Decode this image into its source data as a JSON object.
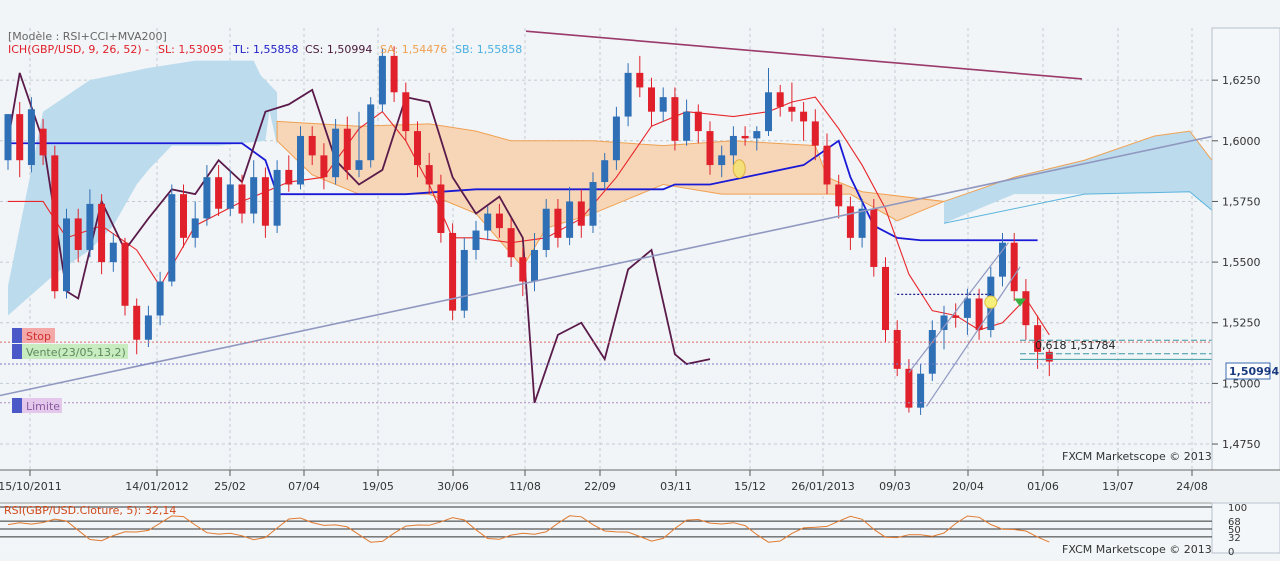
{
  "legend": {
    "model": "[Modèle : RSI+CCI+MVA200]",
    "ich_name": "ICH(GBP/USD, 9, 26, 52) -",
    "sl": "SL: 1,53095",
    "tl": "TL: 1,55858",
    "cs": "CS: 1,50994",
    "sa": "SA: 1,54476",
    "sb": "SB: 1,55858"
  },
  "colors": {
    "up": "#2f6fb5",
    "down": "#e0202a",
    "kijun": "#1a1ad6",
    "tenkan": "#e8262a",
    "chikou": "#5a1a4a",
    "kumo_bull": "#bcdcee",
    "kumo_bear": "#f7d6b8",
    "span_a": "#f0a050",
    "span_b": "#5ab4dc",
    "trend": "#9098c0",
    "top_trend": "#9a3a6a"
  },
  "orders": {
    "stop": "Stop",
    "sell": "Vente(23/05,13,2)",
    "limit": "Limite"
  },
  "fib_label": "0,618 1,51784",
  "price_badge": "1,50994",
  "watermark": "FXCM Marketscope © 2013",
  "watermark2": "FXCM Marketscope © 2013",
  "rsi_label": "RSI(GBP/USD.Cloture, 5): 32,14",
  "chart_data": {
    "type": "candlestick",
    "x_ticks": [
      "15/10/2011",
      "14/01/2012",
      "25/02",
      "07/04",
      "19/05",
      "30/06",
      "11/08",
      "22/09",
      "03/11",
      "15/12",
      "26/01/2013",
      "09/03",
      "20/04",
      "01/06",
      "13/07",
      "24/08"
    ],
    "y_ticks": [
      "1,4750",
      "1,5000",
      "1,5250",
      "1,5500",
      "1,5750",
      "1,6000",
      "1,6250"
    ],
    "y_range": [
      1.4643,
      1.6465
    ],
    "weeks_total": 90,
    "rsi_ticks": [
      "100",
      "68",
      "50",
      "32",
      "0"
    ],
    "candles": [
      [
        1.592,
        1.611,
        1.611,
        1.588
      ],
      [
        1.611,
        1.592,
        1.616,
        1.585
      ],
      [
        1.59,
        1.613,
        1.618,
        1.587
      ],
      [
        1.605,
        1.594,
        1.609,
        1.59
      ],
      [
        1.594,
        1.538,
        1.598,
        1.535
      ],
      [
        1.538,
        1.568,
        1.572,
        1.535
      ],
      [
        1.568,
        1.555,
        1.572,
        1.55
      ],
      [
        1.555,
        1.574,
        1.58,
        1.552
      ],
      [
        1.574,
        1.55,
        1.578,
        1.545
      ],
      [
        1.55,
        1.558,
        1.562,
        1.546
      ],
      [
        1.558,
        1.532,
        1.56,
        1.528
      ],
      [
        1.532,
        1.518,
        1.535,
        1.512
      ],
      [
        1.518,
        1.528,
        1.532,
        1.515
      ],
      [
        1.528,
        1.542,
        1.546,
        1.524
      ],
      [
        1.542,
        1.578,
        1.582,
        1.54
      ],
      [
        1.578,
        1.56,
        1.582,
        1.556
      ],
      [
        1.56,
        1.568,
        1.575,
        1.556
      ],
      [
        1.568,
        1.585,
        1.59,
        1.565
      ],
      [
        1.585,
        1.572,
        1.59,
        1.569
      ],
      [
        1.572,
        1.582,
        1.588,
        1.569
      ],
      [
        1.582,
        1.57,
        1.586,
        1.566
      ],
      [
        1.57,
        1.585,
        1.592,
        1.566
      ],
      [
        1.585,
        1.565,
        1.589,
        1.56
      ],
      [
        1.565,
        1.588,
        1.592,
        1.562
      ],
      [
        1.588,
        1.582,
        1.594,
        1.579
      ],
      [
        1.582,
        1.602,
        1.606,
        1.58
      ],
      [
        1.602,
        1.594,
        1.606,
        1.59
      ],
      [
        1.594,
        1.585,
        1.599,
        1.58
      ],
      [
        1.585,
        1.605,
        1.609,
        1.582
      ],
      [
        1.605,
        1.588,
        1.61,
        1.584
      ],
      [
        1.588,
        1.592,
        1.612,
        1.585
      ],
      [
        1.592,
        1.615,
        1.618,
        1.589
      ],
      [
        1.615,
        1.635,
        1.638,
        1.612
      ],
      [
        1.635,
        1.62,
        1.639,
        1.616
      ],
      [
        1.62,
        1.604,
        1.624,
        1.6
      ],
      [
        1.604,
        1.59,
        1.608,
        1.585
      ],
      [
        1.59,
        1.582,
        1.595,
        1.578
      ],
      [
        1.582,
        1.562,
        1.586,
        1.558
      ],
      [
        1.562,
        1.53,
        1.566,
        1.526
      ],
      [
        1.53,
        1.555,
        1.56,
        1.527
      ],
      [
        1.555,
        1.563,
        1.567,
        1.551
      ],
      [
        1.563,
        1.57,
        1.573,
        1.559
      ],
      [
        1.57,
        1.564,
        1.574,
        1.56
      ],
      [
        1.564,
        1.552,
        1.568,
        1.548
      ],
      [
        1.552,
        1.542,
        1.556,
        1.536
      ],
      [
        1.542,
        1.555,
        1.562,
        1.538
      ],
      [
        1.555,
        1.572,
        1.576,
        1.552
      ],
      [
        1.572,
        1.56,
        1.576,
        1.556
      ],
      [
        1.56,
        1.575,
        1.581,
        1.557
      ],
      [
        1.575,
        1.565,
        1.58,
        1.56
      ],
      [
        1.565,
        1.583,
        1.587,
        1.562
      ],
      [
        1.583,
        1.592,
        1.595,
        1.58
      ],
      [
        1.592,
        1.61,
        1.614,
        1.588
      ],
      [
        1.61,
        1.628,
        1.632,
        1.606
      ],
      [
        1.628,
        1.622,
        1.635,
        1.618
      ],
      [
        1.622,
        1.612,
        1.626,
        1.606
      ],
      [
        1.612,
        1.618,
        1.622,
        1.608
      ],
      [
        1.618,
        1.6,
        1.622,
        1.596
      ],
      [
        1.6,
        1.612,
        1.617,
        1.598
      ],
      [
        1.612,
        1.604,
        1.615,
        1.599
      ],
      [
        1.604,
        1.59,
        1.608,
        1.586
      ],
      [
        1.59,
        1.594,
        1.598,
        1.585
      ],
      [
        1.594,
        1.602,
        1.606,
        1.59
      ],
      [
        1.602,
        1.601,
        1.606,
        1.598
      ],
      [
        1.601,
        1.604,
        1.606,
        1.596
      ],
      [
        1.604,
        1.62,
        1.63,
        1.602
      ],
      [
        1.62,
        1.614,
        1.623,
        1.61
      ],
      [
        1.614,
        1.612,
        1.624,
        1.608
      ],
      [
        1.612,
        1.608,
        1.616,
        1.6
      ],
      [
        1.608,
        1.598,
        1.613,
        1.592
      ],
      [
        1.598,
        1.582,
        1.603,
        1.578
      ],
      [
        1.582,
        1.573,
        1.586,
        1.568
      ],
      [
        1.573,
        1.56,
        1.577,
        1.555
      ],
      [
        1.56,
        1.572,
        1.576,
        1.556
      ],
      [
        1.572,
        1.548,
        1.576,
        1.544
      ],
      [
        1.548,
        1.522,
        1.552,
        1.517
      ],
      [
        1.522,
        1.506,
        1.526,
        1.503
      ],
      [
        1.506,
        1.49,
        1.51,
        1.488
      ],
      [
        1.49,
        1.504,
        1.508,
        1.487
      ],
      [
        1.504,
        1.522,
        1.526,
        1.501
      ],
      [
        1.522,
        1.528,
        1.532,
        1.514
      ],
      [
        1.528,
        1.527,
        1.533,
        1.523
      ],
      [
        1.527,
        1.535,
        1.539,
        1.52
      ],
      [
        1.535,
        1.522,
        1.539,
        1.518
      ],
      [
        1.522,
        1.544,
        1.548,
        1.519
      ],
      [
        1.544,
        1.558,
        1.562,
        1.54
      ],
      [
        1.558,
        1.538,
        1.562,
        1.534
      ],
      [
        1.538,
        1.524,
        1.543,
        1.518
      ],
      [
        1.524,
        1.513,
        1.528,
        1.506
      ],
      [
        1.513,
        1.509,
        1.514,
        1.503
      ]
    ]
  }
}
